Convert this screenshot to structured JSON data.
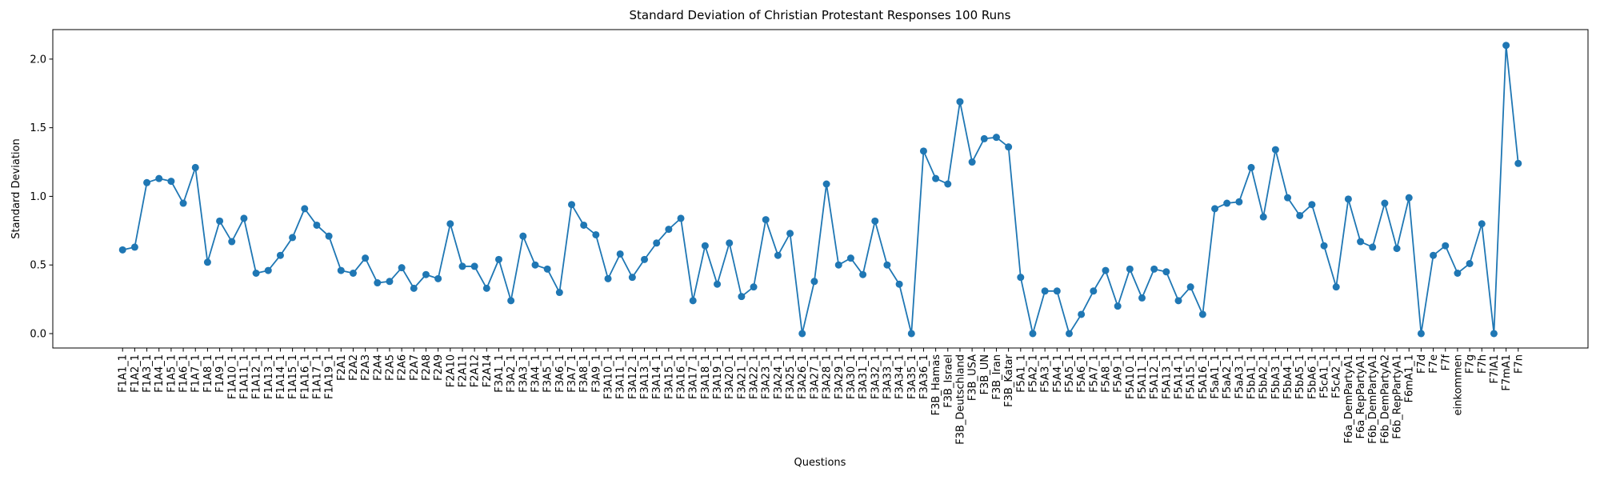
{
  "chart_data": {
    "type": "line",
    "title": "Standard Deviation of Christian Protestant Responses 100 Runs",
    "xlabel": "Questions",
    "ylabel": "Standard Deviation",
    "categories": [
      "F1A1_1",
      "F1A2_1",
      "F1A3_1",
      "F1A4_1",
      "F1A5_1",
      "F1A6_1",
      "F1A7_1",
      "F1A8_1",
      "F1A9_1",
      "F1A10_1",
      "F1A11_1",
      "F1A12_1",
      "F1A13_1",
      "F1A14_1",
      "F1A15_1",
      "F1A16_1",
      "F1A17_1",
      "F1A19_1",
      "F2A1",
      "F2A2",
      "F2A3",
      "F2A4",
      "F2A5",
      "F2A6",
      "F2A7",
      "F2A8",
      "F2A9",
      "F2A10",
      "F2A11",
      "F2A12",
      "F2A14",
      "F3A1_1",
      "F3A2_1",
      "F3A3_1",
      "F3A4_1",
      "F3A5_1",
      "F3A6_1",
      "F3A7_1",
      "F3A8_1",
      "F3A9_1",
      "F3A10_1",
      "F3A11_1",
      "F3A12_1",
      "F3A13_1",
      "F3A14_1",
      "F3A15_1",
      "F3A16_1",
      "F3A17_1",
      "F3A18_1",
      "F3A19_1",
      "F3A20_1",
      "F3A21_1",
      "F3A22_1",
      "F3A23_1",
      "F3A24_1",
      "F3A25_1",
      "F3A26_1",
      "F3A27_1",
      "F3A28_1",
      "F3A29_1",
      "F3A30_1",
      "F3A31_1",
      "F3A32_1",
      "F3A33_1",
      "F3A34_1",
      "F3A35_1",
      "F3A36_1",
      "F3B_Hamas",
      "F3B_Israel",
      "F3B_Deutschland",
      "F3B_USA",
      "F3B_UN",
      "F3B_Iran",
      "F3B_Katar",
      "F5A1_1",
      "F5A2_1",
      "F5A3_1",
      "F5A4_1",
      "F5A5_1",
      "F5A6_1",
      "F5A7_1",
      "F5A8_1",
      "F5A9_1",
      "F5A10_1",
      "F5A11_1",
      "F5A12_1",
      "F5A13_1",
      "F5A14_1",
      "F5A15_1",
      "F5A16_1",
      "F5aA1_1",
      "F5aA2_1",
      "F5aA3_1",
      "F5bA1_1",
      "F5bA2_1",
      "F5bA3_1",
      "F5bA4_1",
      "F5bA5_1",
      "F5bA6_1",
      "F5cA1_1",
      "F5cA2_1",
      "F6a_DemPartyA1",
      "F6a_RepPartyA1",
      "F6b_DemPartyA1",
      "F6b_DemPartyA2",
      "F6b_RepPartyA1",
      "F6mA1_1",
      "F7d",
      "F7e",
      "F7f",
      "einkommen",
      "F7g",
      "F7h",
      "F7lA1",
      "F7mA1",
      "F7n"
    ],
    "values": [
      0.61,
      0.63,
      1.1,
      1.13,
      1.11,
      0.95,
      1.21,
      0.52,
      0.82,
      0.67,
      0.84,
      0.44,
      0.46,
      0.57,
      0.7,
      0.91,
      0.79,
      0.71,
      0.46,
      0.44,
      0.55,
      0.37,
      0.38,
      0.48,
      0.33,
      0.43,
      0.4,
      0.8,
      0.49,
      0.49,
      0.33,
      0.54,
      0.24,
      0.71,
      0.5,
      0.47,
      0.3,
      0.94,
      0.79,
      0.72,
      0.4,
      0.58,
      0.41,
      0.54,
      0.66,
      0.76,
      0.84,
      0.24,
      0.64,
      0.36,
      0.66,
      0.27,
      0.34,
      0.83,
      0.57,
      0.73,
      0.0,
      0.38,
      1.09,
      0.5,
      0.55,
      0.43,
      0.82,
      0.5,
      0.36,
      0.0,
      1.33,
      1.13,
      1.09,
      1.69,
      1.25,
      1.42,
      1.43,
      1.36,
      0.41,
      0.0,
      0.31,
      0.31,
      0.0,
      0.14,
      0.31,
      0.46,
      0.2,
      0.47,
      0.26,
      0.47,
      0.45,
      0.24,
      0.34,
      0.14,
      0.91,
      0.95,
      0.96,
      1.21,
      0.85,
      1.34,
      0.99,
      0.86,
      0.94,
      0.64,
      0.34,
      0.98,
      0.67,
      0.63,
      0.95,
      0.62,
      0.99,
      0.0,
      0.57,
      0.64,
      0.44,
      0.51,
      0.8,
      0.0,
      2.1,
      1.24
    ],
    "color": "#1f77b4",
    "ylim": [
      -0.105,
      2.215
    ],
    "yticks": [
      {
        "value": 0,
        "label": "0.0"
      },
      {
        "value": 0.5,
        "label": "0.5"
      },
      {
        "value": 1,
        "label": "1.0"
      },
      {
        "value": 1.5,
        "label": "1.5"
      },
      {
        "value": 2,
        "label": "2.0"
      }
    ],
    "grid": false
  }
}
